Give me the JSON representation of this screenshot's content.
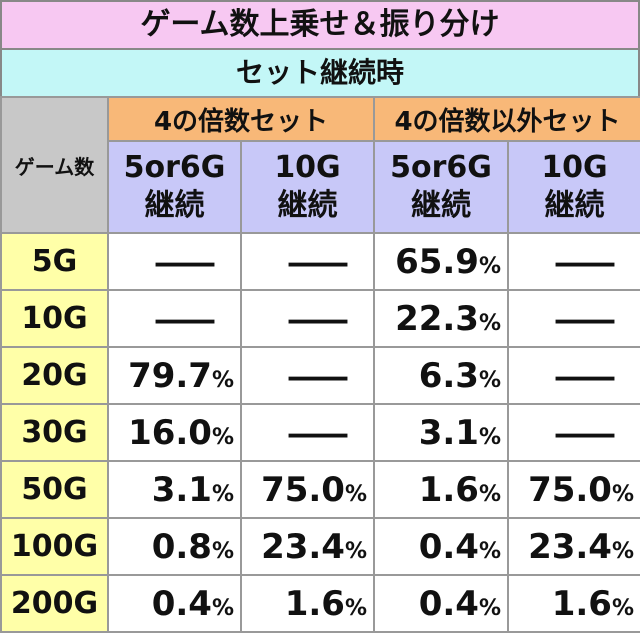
{
  "title": "ゲーム数上乗せ＆振り分け",
  "subtitle": "セット継続時",
  "table": {
    "corner": "ゲーム数",
    "groups": [
      "4の倍数セット",
      "4の倍数以外セット"
    ],
    "columns": [
      [
        "5or6G",
        "継続"
      ],
      [
        "10G",
        "継続"
      ],
      [
        "5or6G",
        "継続"
      ],
      [
        "10G",
        "継続"
      ]
    ],
    "rows": [
      {
        "label": "5G",
        "cells": [
          "—",
          "—",
          {
            "number": "65.9",
            "unit": "%"
          },
          "—"
        ]
      },
      {
        "label": "10G",
        "cells": [
          "—",
          "—",
          {
            "number": "22.3",
            "unit": "%"
          },
          "—"
        ]
      },
      {
        "label": "20G",
        "cells": [
          {
            "number": "79.7",
            "unit": "%"
          },
          "—",
          {
            "number": "6.3",
            "unit": "%"
          },
          "—"
        ]
      },
      {
        "label": "30G",
        "cells": [
          {
            "number": "16.0",
            "unit": "%"
          },
          "—",
          {
            "number": "3.1",
            "unit": "%"
          },
          "—"
        ]
      },
      {
        "label": "50G",
        "cells": [
          {
            "number": "3.1",
            "unit": "%"
          },
          {
            "number": "75.0",
            "unit": "%"
          },
          {
            "number": "1.6",
            "unit": "%"
          },
          {
            "number": "75.0",
            "unit": "%"
          }
        ]
      },
      {
        "label": "100G",
        "cells": [
          {
            "number": "0.8",
            "unit": "%"
          },
          {
            "number": "23.4",
            "unit": "%"
          },
          {
            "number": "0.4",
            "unit": "%"
          },
          {
            "number": "23.4",
            "unit": "%"
          }
        ]
      },
      {
        "label": "200G",
        "cells": [
          {
            "number": "0.4",
            "unit": "%"
          },
          {
            "number": "1.6",
            "unit": "%"
          },
          {
            "number": "0.4",
            "unit": "%"
          },
          {
            "number": "1.6",
            "unit": "%"
          }
        ]
      }
    ]
  }
}
